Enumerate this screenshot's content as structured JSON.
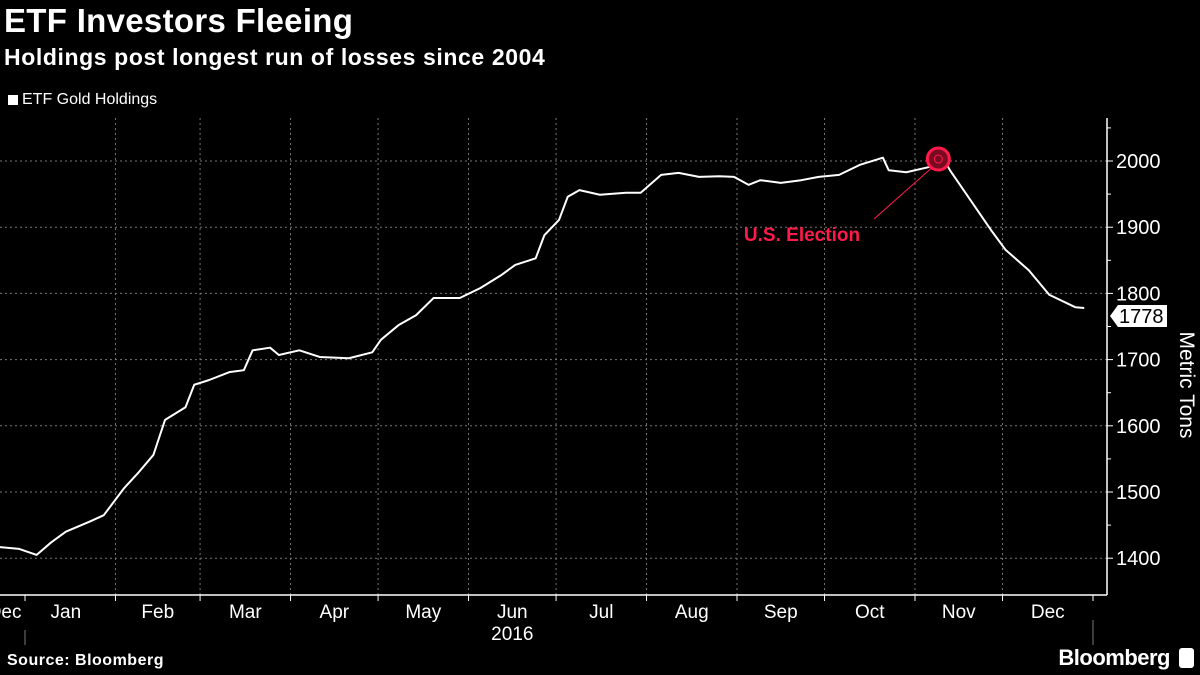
{
  "chart_data": {
    "type": "line",
    "title": "ETF Investors Fleeing",
    "subtitle": "Holdings post longest run of losses since 2004",
    "legend": [
      "ETF Gold Holdings"
    ],
    "ylabel": "Metric Tons",
    "xlabel": "2016",
    "ylim": [
      1360,
      2070
    ],
    "yticks": [
      1400,
      1500,
      1600,
      1700,
      1800,
      1900,
      2000
    ],
    "xticks": [
      "Dec",
      "Jan",
      "Feb",
      "Mar",
      "Apr",
      "May",
      "Jun",
      "Jul",
      "Aug",
      "Sep",
      "Oct",
      "Nov",
      "Dec"
    ],
    "x_unit": "day of 2016",
    "series": [
      {
        "name": "ETF Gold Holdings",
        "color": "#ffffff",
        "x": [
          -9,
          -2,
          4,
          9,
          14,
          22,
          27,
          34,
          39,
          44,
          48,
          55,
          58,
          63,
          70,
          75,
          78,
          84,
          87,
          94,
          101,
          111,
          119,
          122,
          128,
          134,
          140,
          149,
          156,
          163,
          168,
          175,
          178,
          183,
          186,
          190,
          197,
          206,
          211,
          218,
          224,
          231,
          238,
          243,
          248,
          252,
          259,
          266,
          272,
          279,
          286,
          294,
          296,
          302,
          310,
          314,
          317,
          324,
          331,
          336,
          344,
          351,
          360,
          363
        ],
        "values": [
          1417,
          1414,
          1405,
          1424,
          1440,
          1455,
          1465,
          1506,
          1530,
          1556,
          1609,
          1628,
          1662,
          1669,
          1681,
          1684,
          1714,
          1718,
          1707,
          1714,
          1704,
          1702,
          1711,
          1730,
          1752,
          1767,
          1793,
          1793,
          1808,
          1827,
          1843,
          1853,
          1888,
          1911,
          1946,
          1956,
          1949,
          1952,
          1952,
          1979,
          1982,
          1976,
          1977,
          1976,
          1964,
          1971,
          1967,
          1971,
          1976,
          1979,
          1994,
          2005,
          1986,
          1983,
          1991,
          2009,
          1986,
          1941,
          1896,
          1866,
          1835,
          1798,
          1779,
          1778
        ]
      }
    ],
    "last_value_label": "1778",
    "annotations": [
      {
        "text": "U.S. Election",
        "x": 313,
        "y": 2003,
        "color": "#ff1a4b"
      }
    ]
  },
  "source": "Source: Bloomberg",
  "brand": "Bloomberg"
}
